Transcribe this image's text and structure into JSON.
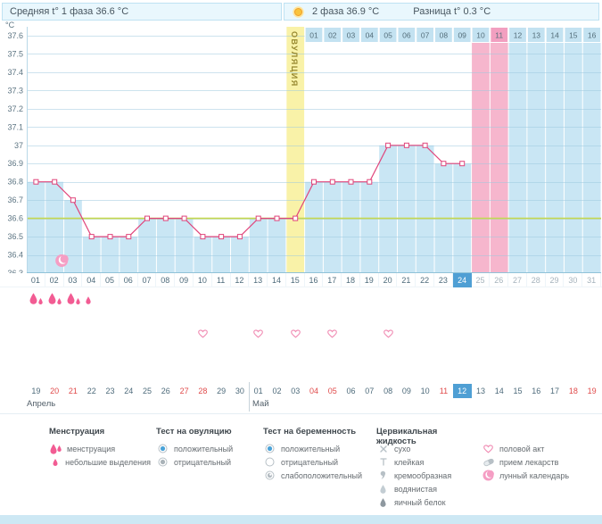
{
  "header": {
    "avg_phase1": "Средняя t° 1 фаза 36.6 °C",
    "phase2": "2 фаза 36.9 °C",
    "diff": "Разница t° 0.3 °C"
  },
  "chart_data": {
    "type": "line",
    "unit_label": "°C",
    "ylim": [
      36.3,
      37.6
    ],
    "y_ticks": [
      "37.6",
      "37.5",
      "37.4",
      "37.3",
      "37.2",
      "37.1",
      "37",
      "36.9",
      "36.8",
      "36.7",
      "36.6",
      "36.5",
      "36.4",
      "36.3"
    ],
    "coverline": 36.6,
    "grid": true,
    "legend_position": "bottom",
    "x_days": [
      "01",
      "02",
      "03",
      "04",
      "05",
      "06",
      "07",
      "08",
      "09",
      "10",
      "11",
      "12",
      "13",
      "14",
      "15",
      "16",
      "17",
      "18",
      "19",
      "20",
      "21",
      "22",
      "23",
      "24",
      "25",
      "26",
      "27",
      "28",
      "29",
      "30",
      "31"
    ],
    "temps": [
      36.8,
      36.8,
      36.7,
      36.5,
      36.5,
      36.5,
      36.6,
      36.6,
      36.6,
      36.5,
      36.5,
      36.5,
      36.6,
      36.6,
      36.6,
      36.8,
      36.8,
      36.8,
      36.8,
      37.0,
      37.0,
      37.0,
      36.9,
      36.9
    ],
    "ovulation_day": 15,
    "ovulation_label": "ОВУЛЯЦИЯ",
    "current_day": 24,
    "expected_period_days": [
      25,
      26
    ],
    "dpo_labels": [
      "01",
      "02",
      "03",
      "04",
      "05",
      "06",
      "07",
      "08",
      "09",
      "10",
      "11",
      "12",
      "13",
      "14",
      "15",
      "16"
    ],
    "dpo_highlight": "11"
  },
  "marks": {
    "menstruation": [
      {
        "day": 1,
        "type": "менструация"
      },
      {
        "day": 2,
        "type": "менструация"
      },
      {
        "day": 3,
        "type": "менструация"
      },
      {
        "day": 4,
        "type": "небольшие выделения"
      }
    ],
    "intercourse_days": [
      10,
      13,
      15,
      17,
      20
    ],
    "moon_day": 2
  },
  "calendar": {
    "months": [
      {
        "label": "Апрель",
        "days": [
          {
            "d": "19"
          },
          {
            "d": "20",
            "weekend": true
          },
          {
            "d": "21",
            "weekend": true
          },
          {
            "d": "22"
          },
          {
            "d": "23"
          },
          {
            "d": "24"
          },
          {
            "d": "25"
          },
          {
            "d": "26"
          },
          {
            "d": "27",
            "weekend": true
          },
          {
            "d": "28",
            "weekend": true
          },
          {
            "d": "29"
          },
          {
            "d": "30"
          }
        ]
      },
      {
        "label": "Май",
        "days": [
          {
            "d": "01"
          },
          {
            "d": "02"
          },
          {
            "d": "03"
          },
          {
            "d": "04",
            "weekend": true
          },
          {
            "d": "05",
            "weekend": true
          },
          {
            "d": "06"
          },
          {
            "d": "07"
          },
          {
            "d": "08"
          },
          {
            "d": "09"
          },
          {
            "d": "10"
          },
          {
            "d": "11",
            "weekend": true
          },
          {
            "d": "12",
            "weekend": true,
            "current": true
          },
          {
            "d": "13"
          },
          {
            "d": "14"
          },
          {
            "d": "15"
          },
          {
            "d": "16"
          },
          {
            "d": "17"
          },
          {
            "d": "18",
            "weekend": true
          },
          {
            "d": "19",
            "weekend": true
          }
        ]
      }
    ]
  },
  "legend": {
    "sections": [
      {
        "title": "Менструация",
        "items": [
          {
            "icon": "drops",
            "label": "менструация"
          },
          {
            "icon": "drop-small",
            "label": "небольшие выделения"
          }
        ]
      },
      {
        "title": "Тест на овуляцию",
        "items": [
          {
            "icon": "radio-blue",
            "label": "положительный"
          },
          {
            "icon": "radio-grey",
            "label": "отрицательный"
          }
        ]
      },
      {
        "title": "Тест на беременность",
        "items": [
          {
            "icon": "radio-blue",
            "label": "положительный"
          },
          {
            "icon": "radio-empty",
            "label": "отрицательный"
          },
          {
            "icon": "radio-weak",
            "label": "слабоположительный"
          }
        ]
      },
      {
        "title": "Цервикальная жидкость",
        "items": [
          {
            "icon": "cross",
            "label": "сухо"
          },
          {
            "icon": "sticky",
            "label": "клейкая"
          },
          {
            "icon": "comma",
            "label": "кремообразная"
          },
          {
            "icon": "drop-grey",
            "label": "водянистая"
          },
          {
            "icon": "drop-dark",
            "label": "яичный белок"
          }
        ]
      },
      {
        "title": "",
        "items": [
          {
            "icon": "heart",
            "label": "половой акт"
          },
          {
            "icon": "pill",
            "label": "прием лекарств"
          },
          {
            "icon": "moon",
            "label": "лунный календарь"
          }
        ]
      }
    ]
  },
  "colors": {
    "fill": "#c9e6f4",
    "dpo_cell": "#c3e2f1",
    "ovulation": "#f9f2a8",
    "expected_period": "#f6b6cd",
    "expected_period_strong": "#f29fc0",
    "coverline": "#c6d84f",
    "line": "#e0457b",
    "current_day": "#4f9fd4",
    "weekend": "#e04b4b",
    "mens": "#f25c93",
    "moon": "#f59ec4"
  }
}
